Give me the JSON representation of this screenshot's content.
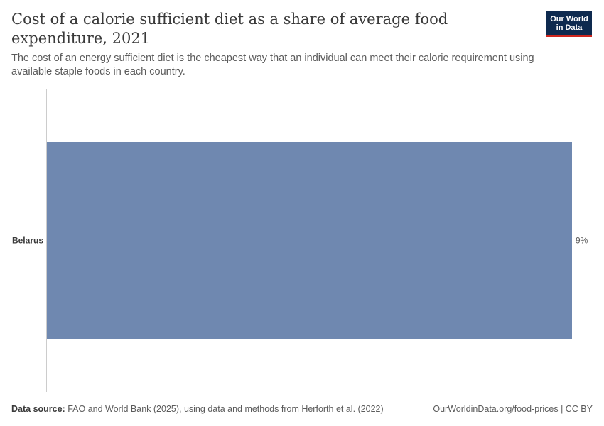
{
  "header": {
    "title": "Cost of a calorie sufficient diet as a share of average food expenditure, 2021",
    "subtitle": "The cost of an energy sufficient diet is the cheapest way that an individual can meet their calorie requirement using available staple foods in each country.",
    "logo_line1": "Our World",
    "logo_line2": "in Data"
  },
  "chart_data": {
    "type": "bar",
    "orientation": "horizontal",
    "categories": [
      "Belarus"
    ],
    "values": [
      9
    ],
    "value_labels": [
      "9%"
    ],
    "unit": "%",
    "xlim": [
      0,
      9
    ],
    "grid": false,
    "bar_color": "#6f88b0"
  },
  "footer": {
    "source_label": "Data source:",
    "source_text": "FAO and World Bank (2025), using data and methods from Herforth et al. (2022)",
    "url_license": "OurWorldinData.org/food-prices | CC BY"
  }
}
